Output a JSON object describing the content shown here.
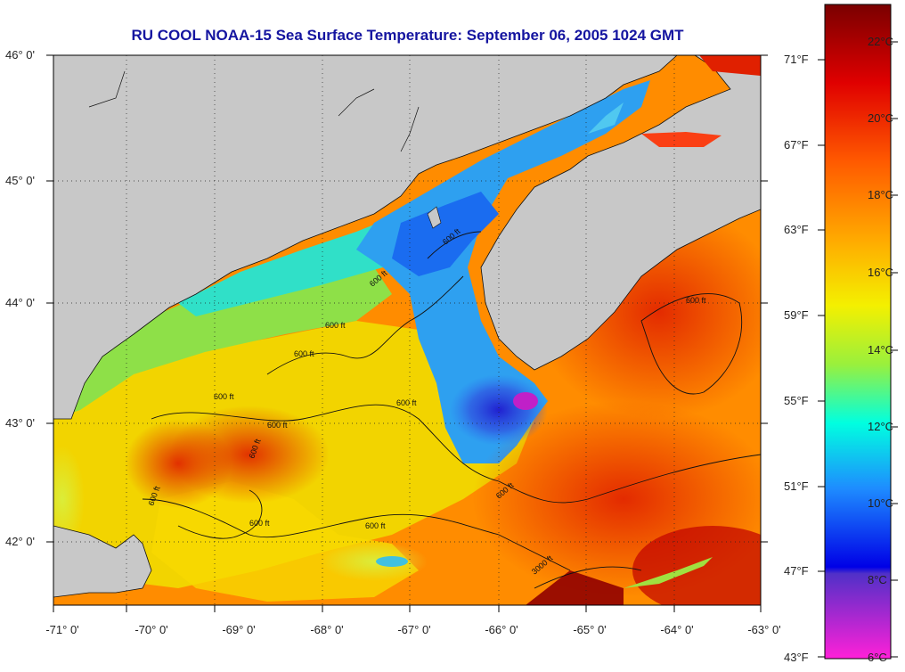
{
  "title": "RU COOL  NOAA-15  Sea Surface Temperature:  September 06, 2005 1024 GMT",
  "lat_labels": [
    "46° 0'",
    "45° 0'",
    "44° 0'",
    "43° 0'",
    "42° 0'"
  ],
  "lon_labels": [
    "-71° 0'",
    "-70° 0'",
    "-69° 0'",
    "-68° 0'",
    "-67° 0'",
    "-66° 0'",
    "-65° 0'",
    "-64° 0'",
    "-63° 0'"
  ],
  "colorbar": {
    "fahrenheit": [
      "71°F",
      "67°F",
      "63°F",
      "59°F",
      "55°F",
      "51°F",
      "47°F",
      "43°F"
    ],
    "celsius": [
      "22°C",
      "20°C",
      "18°C",
      "16°C",
      "14°C",
      "12°C",
      "10°C",
      "8°C",
      "6°C"
    ]
  },
  "contour_labels": [
    "600 ft",
    "600 ft",
    "600 ft",
    "600 ft",
    "600 ft",
    "600 ft",
    "600 ft",
    "600 ft",
    "600 ft",
    "600 ft",
    "600 ft",
    "600 ft",
    "600 ft",
    "3000 ft"
  ],
  "colors": {
    "land": "#c8c8c8",
    "title": "#1515a0"
  }
}
